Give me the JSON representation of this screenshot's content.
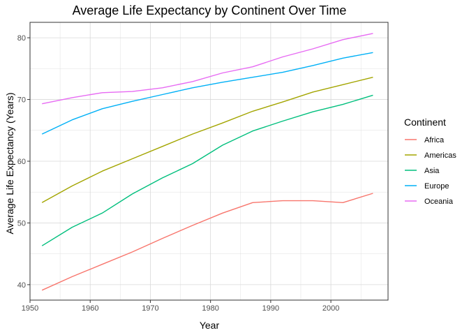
{
  "chart_data": {
    "type": "line",
    "title": "Average Life Expectancy by Continent Over Time",
    "xlabel": "Year",
    "ylabel": "Average Life Expectancy (Years)",
    "x": [
      1952,
      1957,
      1962,
      1967,
      1972,
      1977,
      1982,
      1987,
      1992,
      1997,
      2002,
      2007
    ],
    "xlim": [
      1950,
      2009.5
    ],
    "ylim": [
      37.5,
      82.5
    ],
    "x_ticks": [
      1950,
      1960,
      1970,
      1980,
      1990,
      2000
    ],
    "y_ticks": [
      40,
      50,
      60,
      70,
      80
    ],
    "grid": true,
    "legend": {
      "title": "Continent",
      "position": "right"
    },
    "series": [
      {
        "name": "Africa",
        "color": "#F8766D",
        "values": [
          39.1,
          41.3,
          43.3,
          45.3,
          47.5,
          49.6,
          51.6,
          53.3,
          53.6,
          53.6,
          53.3,
          54.8
        ]
      },
      {
        "name": "Americas",
        "color": "#A3A500",
        "values": [
          53.3,
          56.0,
          58.4,
          60.4,
          62.4,
          64.4,
          66.2,
          68.1,
          69.6,
          71.2,
          72.4,
          73.6
        ]
      },
      {
        "name": "Asia",
        "color": "#00BF7D",
        "values": [
          46.3,
          49.3,
          51.6,
          54.7,
          57.3,
          59.6,
          62.6,
          64.9,
          66.5,
          68.0,
          69.2,
          70.7
        ]
      },
      {
        "name": "Europe",
        "color": "#00B0F6",
        "values": [
          64.4,
          66.7,
          68.5,
          69.7,
          70.8,
          71.9,
          72.8,
          73.6,
          74.4,
          75.5,
          76.7,
          77.6
        ]
      },
      {
        "name": "Oceania",
        "color": "#E76BF3",
        "values": [
          69.3,
          70.3,
          71.1,
          71.3,
          71.9,
          72.9,
          74.3,
          75.3,
          76.9,
          78.2,
          79.7,
          80.7
        ]
      }
    ]
  }
}
